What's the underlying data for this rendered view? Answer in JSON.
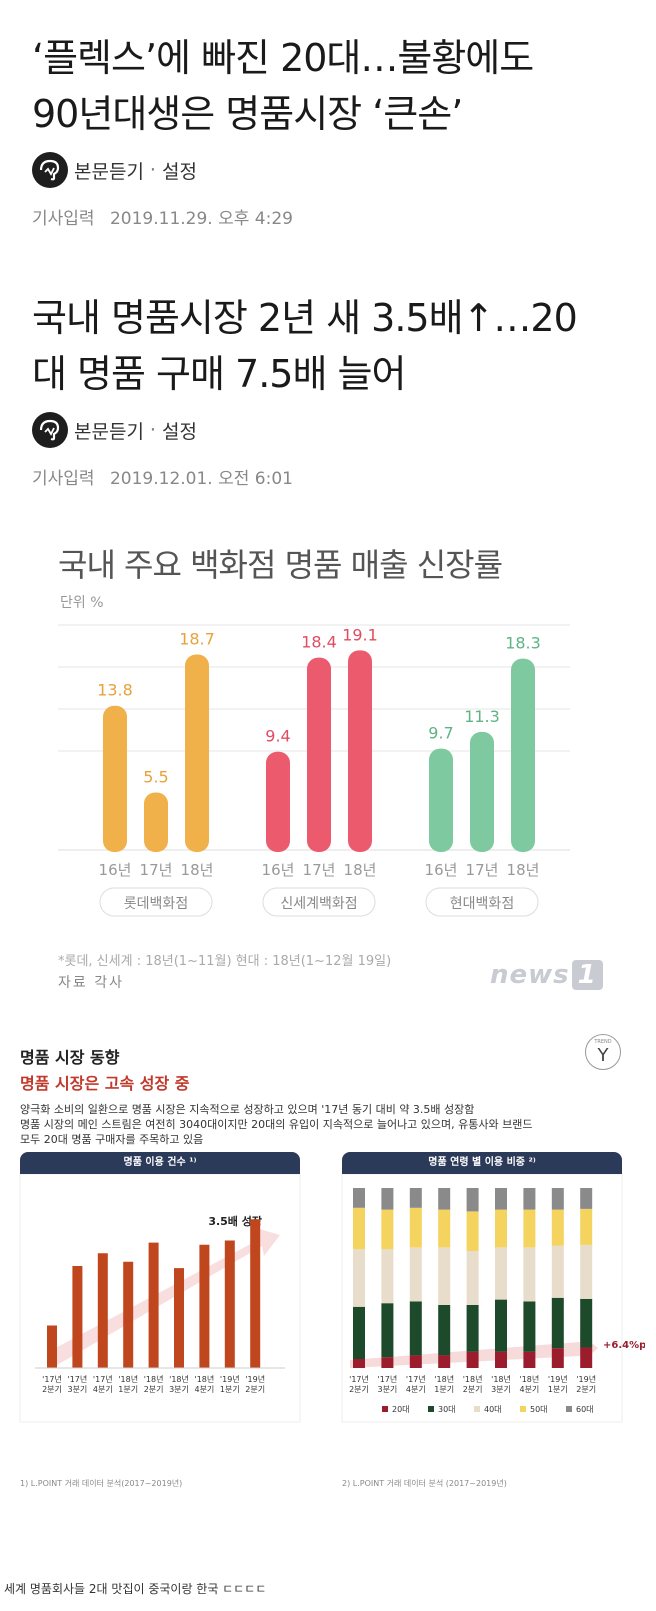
{
  "articles": [
    {
      "headline_line1": "‘플렉스’에 빠진 20대…불황에도",
      "headline_line2": "90년대생은 명품시장 ‘큰손’",
      "listen_label": "본문듣기",
      "settings_label": "설정",
      "date_label": "기사입력",
      "date_value": "2019.11.29. 오후 4:29"
    },
    {
      "headline_line1": "국내 명품시장 2년 새 3.5배↑…20",
      "headline_line2": "대 명품 구매 7.5배 늘어",
      "listen_label": "본문듣기",
      "settings_label": "설정",
      "date_label": "기사입력",
      "date_value": "2019.12.01. 오전 6:01"
    }
  ],
  "chart1": {
    "title": "국내 주요 백화점 명품 매출 신장률",
    "unit": "단위 %",
    "footnote": "*롯데, 신세계 : 18년(1~11월) 현대 : 18년(1~12월 19일)",
    "source": "자료 각사",
    "watermark": "news",
    "watermark_box": "1"
  },
  "report": {
    "title": "명품 시장 동향",
    "subtitle": "명품 시장은 고속 성장 중",
    "body_line1": "양극화 소비의 일환으로 명품 시장은 지속적으로 성장하고 있으며 '17년 동기 대비 약 3.5배 성장함",
    "body_line2": "명품 시장의 메인 스트림은 여전히 3040대이지만 20대의 유입이 지속적으로 늘어나고 있으며, 유통사와 브랜드",
    "body_line3": "모두 20대 명품 구매자를 주목하고 있음",
    "badge_small": "TREND",
    "badge_letter": "Y",
    "left_panel_title": "명품 이용 건수 ¹⁾",
    "right_panel_title": "명품 연령 별 이용 비중 ²⁾",
    "left_note": "1) L.POINT 거래 데이터 분석(2017~2019년)",
    "right_note": "2) L.POINT 거래 데이터 분석 (2017~2019년)"
  },
  "caption": "세계 명품회사들 2대 맛집이 중국이랑 한국 ㄷㄷㄷㄷ",
  "chart_data": [
    {
      "type": "bar",
      "title": "국내 주요 백화점 명품 매출 신장률",
      "unit": "단위 %",
      "groups": [
        {
          "name": "롯데백화점",
          "categories": [
            "16년",
            "17년",
            "18년"
          ],
          "values": [
            13.8,
            5.5,
            18.7
          ],
          "color": "#f0b04a"
        },
        {
          "name": "신세계백화점",
          "categories": [
            "16년",
            "17년",
            "18년"
          ],
          "values": [
            9.4,
            18.4,
            19.1
          ],
          "color": "#ec5a6e"
        },
        {
          "name": "현대백화점",
          "categories": [
            "16년",
            "17년",
            "18년"
          ],
          "values": [
            9.7,
            11.3,
            18.3
          ],
          "color": "#7fc9a0"
        }
      ],
      "ylim": [
        0,
        22
      ],
      "grid": true,
      "value_label_colors": [
        "#e9a23a",
        "#e14d60",
        "#5fb385"
      ]
    },
    {
      "type": "bar",
      "title": "명품 이용 건수",
      "categories": [
        "'17년 2분기",
        "'17년 3분기",
        "'17년 4분기",
        "'18년 1분기",
        "'18년 2분기",
        "'18년 3분기",
        "'18년 4분기",
        "'19년 1분기",
        "'19년 2분기"
      ],
      "category_lines": [
        [
          "'17년",
          "2분기"
        ],
        [
          "'17년",
          "3분기"
        ],
        [
          "'17년",
          "4분기"
        ],
        [
          "'18년",
          "1분기"
        ],
        [
          "'18년",
          "2분기"
        ],
        [
          "'18년",
          "3분기"
        ],
        [
          "'18년",
          "4분기"
        ],
        [
          "'19년",
          "1분기"
        ],
        [
          "'19년",
          "2분기"
        ]
      ],
      "values": [
        1.0,
        2.4,
        2.7,
        2.5,
        2.95,
        2.35,
        2.9,
        3.0,
        3.5
      ],
      "annotation": "3.5배 성장",
      "ylim": [
        0,
        4
      ],
      "color": "#c0461e"
    },
    {
      "type": "bar",
      "stacked": true,
      "title": "명품 연령 별 이용 비중",
      "categories": [
        "'17년 2분기",
        "'17년 3분기",
        "'17년 4분기",
        "'18년 1분기",
        "'18년 2분기",
        "'18년 3분기",
        "'18년 4분기",
        "'19년 1분기",
        "'19년 2분기"
      ],
      "category_lines": [
        [
          "'17년",
          "2분기"
        ],
        [
          "'17년",
          "3분기"
        ],
        [
          "'17년",
          "4분기"
        ],
        [
          "'18년",
          "1분기"
        ],
        [
          "'18년",
          "2분기"
        ],
        [
          "'18년",
          "3분기"
        ],
        [
          "'18년",
          "4분기"
        ],
        [
          "'19년",
          "1분기"
        ],
        [
          "'19년",
          "2분기"
        ]
      ],
      "series": [
        {
          "name": "20대",
          "color": "#9b1c2c",
          "values": [
            5,
            6,
            7,
            7,
            9,
            9,
            9,
            11,
            11.4
          ]
        },
        {
          "name": "30대",
          "color": "#1d4a2a",
          "values": [
            29,
            30,
            30,
            28,
            26,
            29,
            28,
            28,
            27
          ]
        },
        {
          "name": "40대",
          "color": "#e8dccb",
          "values": [
            32,
            30,
            30,
            32,
            30,
            29,
            30,
            29,
            30
          ]
        },
        {
          "name": "50대",
          "color": "#f4d35e",
          "values": [
            23,
            22,
            22,
            21,
            22,
            21,
            21,
            20,
            20
          ]
        },
        {
          "name": "60대",
          "color": "#8a8a8a",
          "values": [
            11,
            12,
            11,
            12,
            13,
            12,
            12,
            12,
            11.6
          ]
        }
      ],
      "annotation": "+6.4%p",
      "ylim": [
        0,
        100
      ]
    }
  ]
}
